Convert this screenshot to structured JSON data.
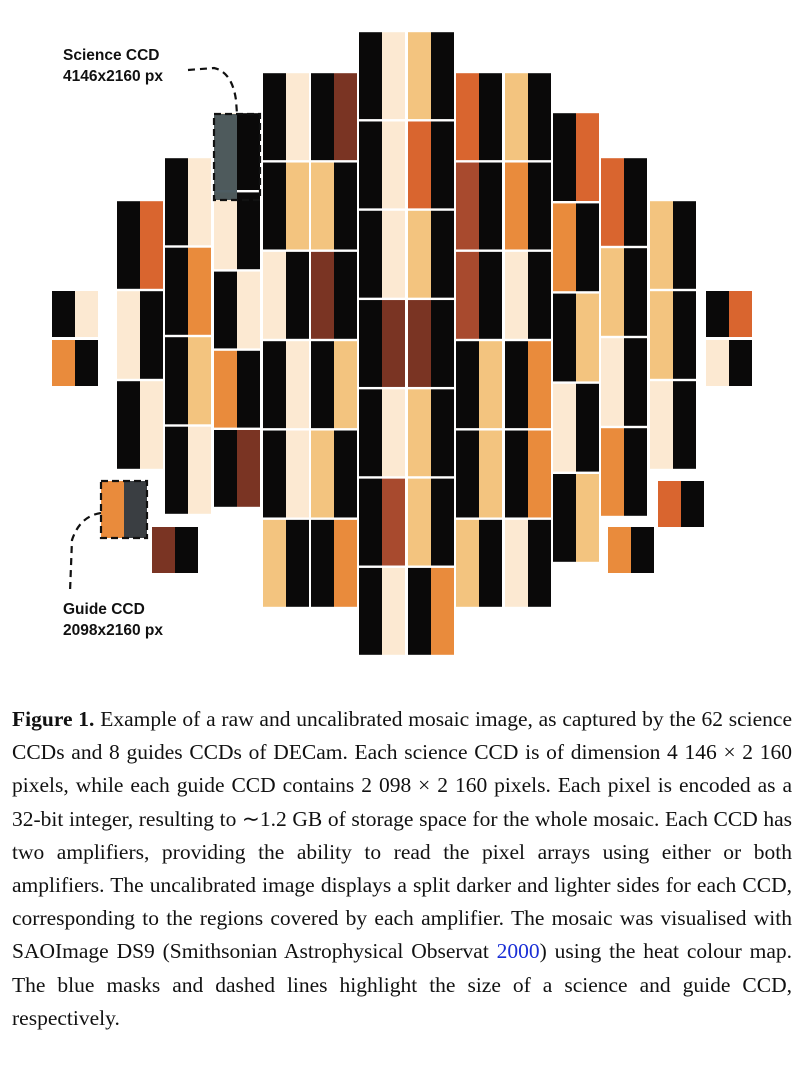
{
  "figure": {
    "annotations": {
      "science_ccd": {
        "title": "Science CCD",
        "size": "4146x2160 px"
      },
      "guide_ccd": {
        "title": "Guide CCD",
        "size": "2098x2160 px"
      }
    },
    "colors": {
      "black": "#0a0909",
      "cream": "#fce9d2",
      "light_orange": "#f3c47f",
      "orange": "#e98b3c",
      "dark_orange": "#d9652f",
      "rust": "#a84a2e",
      "brown": "#7a3423",
      "mask_blue": "#2f4148"
    }
  },
  "caption": {
    "label": "Figure 1.",
    "text_before_citation": " Example of a raw and uncalibrated mosaic image, as captured by the 62 science CCDs and 8 guides CCDs of DECam. Each science CCD is of dimension 4 146 × 2 160 pixels, while each guide CCD contains 2 098 × 2 160 pixels. Each pixel is encoded as a 32-bit integer, resulting to ∼1.2 GB of storage space for the whole mosaic. Each CCD has two amplifiers, providing the ability to read the pixel arrays using either or both amplifiers. The uncalibrated image displays a split darker and lighter sides for each CCD, corresponding to the regions covered by each amplifier. The mosaic was visualised with SAOImage DS9 (Smithsonian Astrophysical Observat ",
    "citation": "2000",
    "text_after_citation": ") using the heat colour map. The blue masks and dashed lines highlight the size of a science and guide CCD, respectively."
  }
}
